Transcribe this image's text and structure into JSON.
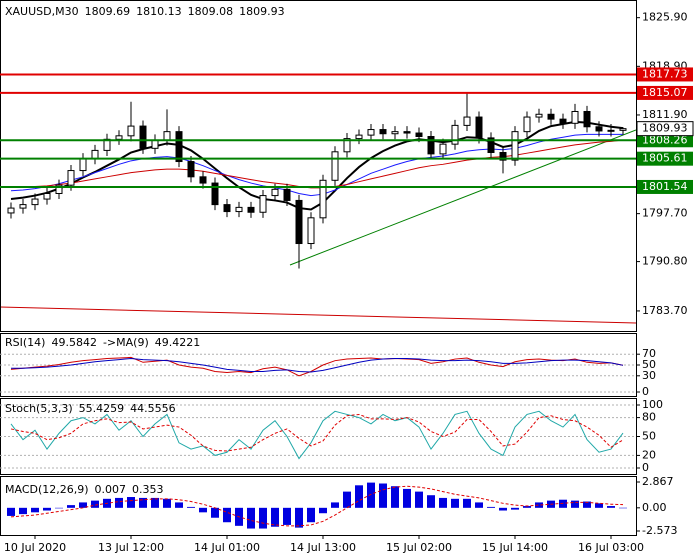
{
  "chart_data": [
    {
      "type": "candlestick",
      "title": "XAUUSD,M30",
      "categories": [
        null,
        null,
        "10 Jul 2020",
        null,
        null,
        null,
        null,
        null,
        null,
        null,
        "13 Jul 12:00",
        null,
        null,
        null,
        null,
        null,
        null,
        null,
        "14 Jul 01:00",
        null,
        null,
        null,
        null,
        null,
        null,
        null,
        "14 Jul 13:00",
        null,
        null,
        null,
        null,
        null,
        null,
        null,
        "15 Jul 02:00",
        null,
        null,
        null,
        null,
        null,
        null,
        null,
        "15 Jul 14:00",
        null,
        null,
        null,
        null,
        null,
        null,
        null,
        "16 Jul 03:00",
        null
      ],
      "ohlc": [
        [
          1797.8,
          1799.3,
          1797.0,
          1798.5
        ],
        [
          1798.5,
          1799.8,
          1797.7,
          1799.0
        ],
        [
          1799.0,
          1800.6,
          1798.2,
          1799.8
        ],
        [
          1799.8,
          1801.4,
          1799.0,
          1800.6
        ],
        [
          1800.6,
          1802.6,
          1799.8,
          1801.8
        ],
        [
          1801.8,
          1804.7,
          1801.0,
          1803.9
        ],
        [
          1803.9,
          1806.4,
          1803.1,
          1805.6
        ],
        [
          1805.6,
          1807.6,
          1804.8,
          1806.8
        ],
        [
          1806.8,
          1809.2,
          1806.0,
          1808.4
        ],
        [
          1808.4,
          1809.7,
          1807.6,
          1808.9
        ],
        [
          1808.9,
          1813.8,
          1808.1,
          1810.3
        ],
        [
          1810.3,
          1811.1,
          1806.3,
          1807.1
        ],
        [
          1807.1,
          1809.1,
          1806.3,
          1808.3
        ],
        [
          1808.3,
          1812.7,
          1807.5,
          1809.5
        ],
        [
          1809.5,
          1810.3,
          1804.4,
          1805.2
        ],
        [
          1805.2,
          1806.0,
          1802.2,
          1803.0
        ],
        [
          1803.0,
          1803.8,
          1801.3,
          1802.1
        ],
        [
          1802.1,
          1802.9,
          1798.2,
          1799.0
        ],
        [
          1799.0,
          1799.8,
          1797.2,
          1798.0
        ],
        [
          1798.0,
          1799.4,
          1797.2,
          1798.6
        ],
        [
          1798.6,
          1799.4,
          1797.1,
          1797.9
        ],
        [
          1797.9,
          1801.1,
          1797.1,
          1800.3
        ],
        [
          1800.3,
          1802.0,
          1799.5,
          1801.2
        ],
        [
          1801.2,
          1802.0,
          1798.8,
          1799.6
        ],
        [
          1799.6,
          1800.4,
          1789.8,
          1793.4
        ],
        [
          1793.4,
          1797.9,
          1792.6,
          1797.1
        ],
        [
          1797.1,
          1803.3,
          1796.3,
          1802.5
        ],
        [
          1802.5,
          1807.4,
          1801.7,
          1806.6
        ],
        [
          1806.6,
          1809.3,
          1805.8,
          1808.5
        ],
        [
          1808.5,
          1809.8,
          1807.7,
          1809.0
        ],
        [
          1809.0,
          1810.6,
          1808.2,
          1809.8
        ],
        [
          1809.8,
          1810.6,
          1808.4,
          1809.2
        ],
        [
          1809.2,
          1810.3,
          1808.4,
          1809.5
        ],
        [
          1809.5,
          1810.3,
          1808.5,
          1809.3
        ],
        [
          1809.3,
          1810.1,
          1808.0,
          1808.8
        ],
        [
          1808.8,
          1809.6,
          1805.5,
          1806.3
        ],
        [
          1806.3,
          1808.5,
          1805.5,
          1807.7
        ],
        [
          1807.7,
          1811.2,
          1806.9,
          1810.4
        ],
        [
          1810.4,
          1815.0,
          1809.6,
          1811.6
        ],
        [
          1811.6,
          1812.4,
          1807.8,
          1808.6
        ],
        [
          1808.6,
          1809.4,
          1805.7,
          1806.5
        ],
        [
          1806.5,
          1807.3,
          1803.5,
          1805.4
        ],
        [
          1805.4,
          1810.3,
          1804.6,
          1809.5
        ],
        [
          1809.5,
          1812.4,
          1808.7,
          1811.6
        ],
        [
          1811.6,
          1812.8,
          1810.8,
          1812.0
        ],
        [
          1812.0,
          1812.8,
          1810.5,
          1811.3
        ],
        [
          1811.3,
          1812.1,
          1809.9,
          1810.7
        ],
        [
          1810.7,
          1813.5,
          1809.9,
          1812.4
        ],
        [
          1812.4,
          1813.2,
          1809.4,
          1810.2
        ],
        [
          1810.2,
          1811.0,
          1808.8,
          1809.6
        ],
        [
          1809.6,
          1810.6,
          1808.8,
          1809.69
        ],
        [
          1809.69,
          1810.13,
          1809.08,
          1809.93
        ]
      ],
      "lines": [
        {
          "color": "#000000",
          "values": [
            1799.8,
            1800.0,
            1800.3,
            1800.7,
            1801.3,
            1802.0,
            1802.9,
            1803.7,
            1804.6,
            1805.5,
            1806.5,
            1807.0,
            1807.4,
            1807.8,
            1807.6,
            1806.8,
            1805.6,
            1804.2,
            1802.8,
            1801.5,
            1800.4,
            1799.8,
            1799.6,
            1799.3,
            1798.5,
            1798.3,
            1799.3,
            1801.0,
            1802.8,
            1804.4,
            1805.7,
            1806.7,
            1807.5,
            1808.1,
            1808.4,
            1808.2,
            1808.0,
            1808.2,
            1808.7,
            1808.6,
            1808.0,
            1807.3,
            1807.6,
            1808.5,
            1809.6,
            1810.3,
            1810.6,
            1810.9,
            1810.8,
            1810.5,
            1810.2,
            1810.0
          ]
        },
        {
          "color": "#1a1aff",
          "values": [
            1801.0,
            1801.1,
            1801.3,
            1801.6,
            1802.0,
            1802.5,
            1803.0,
            1803.6,
            1804.2,
            1804.8,
            1805.3,
            1805.6,
            1805.8,
            1805.9,
            1805.7,
            1805.2,
            1804.6,
            1803.9,
            1803.2,
            1802.6,
            1802.1,
            1801.7,
            1801.4,
            1801.1,
            1800.6,
            1800.3,
            1800.5,
            1801.1,
            1801.9,
            1802.7,
            1803.5,
            1804.1,
            1804.7,
            1805.2,
            1805.6,
            1805.8,
            1806.0,
            1806.3,
            1806.7,
            1806.9,
            1807.0,
            1806.9,
            1807.1,
            1807.5,
            1808.0,
            1808.4,
            1808.7,
            1809.0,
            1809.1,
            1809.1,
            1809.1,
            1809.1
          ]
        },
        {
          "color": "#cc0000",
          "values": [
            1801.5,
            1801.5,
            1801.6,
            1801.7,
            1801.9,
            1802.1,
            1802.4,
            1802.7,
            1803.0,
            1803.3,
            1803.6,
            1803.8,
            1804.0,
            1804.1,
            1804.1,
            1804.0,
            1803.8,
            1803.5,
            1803.2,
            1802.9,
            1802.6,
            1802.3,
            1802.1,
            1801.9,
            1801.6,
            1801.4,
            1801.4,
            1801.6,
            1801.9,
            1802.3,
            1802.7,
            1803.1,
            1803.5,
            1803.9,
            1804.3,
            1804.6,
            1804.8,
            1805.1,
            1805.4,
            1805.6,
            1805.8,
            1805.9,
            1806.1,
            1806.4,
            1806.7,
            1807.0,
            1807.3,
            1807.6,
            1807.8,
            1808.0,
            1808.1,
            1808.3
          ]
        }
      ],
      "levels": [
        {
          "value": 1817.73,
          "color": "#e00000"
        },
        {
          "value": 1815.07,
          "color": "#e00000"
        },
        {
          "value": 1808.26,
          "color": "#008000"
        },
        {
          "value": 1805.61,
          "color": "#008000"
        },
        {
          "value": 1801.54,
          "color": "#008000"
        }
      ],
      "ylim": [
        1781.1,
        1828.3
      ],
      "yticks": [
        {
          "value": 1825.9,
          "label": "1825.90"
        },
        {
          "value": 1818.9,
          "label": "1818.90"
        },
        {
          "value": 1811.9,
          "label": "1811.90"
        },
        {
          "value": 1797.7,
          "label": "1797.70"
        },
        {
          "value": 1790.8,
          "label": "1790.80"
        },
        {
          "value": 1783.7,
          "label": "1783.70"
        }
      ],
      "grid": false
    },
    {
      "type": "line",
      "title": "RSI(14)",
      "series": [
        {
          "color": "#d00000",
          "values": [
            42,
            44,
            46,
            48,
            51,
            55,
            58,
            60,
            62,
            63,
            64,
            55,
            57,
            59,
            50,
            46,
            44,
            38,
            36,
            38,
            36,
            43,
            46,
            41,
            30,
            38,
            50,
            58,
            61,
            62,
            63,
            61,
            62,
            61,
            60,
            53,
            56,
            61,
            63,
            55,
            50,
            47,
            56,
            60,
            61,
            59,
            58,
            61,
            55,
            53,
            54,
            49.5842
          ]
        },
        {
          "name": "->MA(9)",
          "color": "#0000c0",
          "values": [
            44,
            44,
            45,
            46,
            48,
            50,
            53,
            56,
            58,
            60,
            62,
            60,
            59,
            58,
            56,
            53,
            50,
            46,
            42,
            40,
            38,
            38,
            40,
            41,
            38,
            37,
            40,
            45,
            50,
            55,
            59,
            61,
            62,
            62,
            61,
            59,
            58,
            58,
            59,
            58,
            56,
            53,
            53,
            54,
            56,
            58,
            59,
            59,
            58,
            56,
            54,
            49.4221
          ]
        }
      ],
      "ylim": [
        0,
        100
      ],
      "yticks": [
        70,
        50,
        30,
        0
      ],
      "grid": true
    },
    {
      "type": "line",
      "title": "Stoch(5,3,3)",
      "series": [
        {
          "color": "#20a8a8",
          "values": [
            70,
            45,
            60,
            30,
            55,
            75,
            80,
            70,
            85,
            60,
            75,
            50,
            70,
            85,
            40,
            30,
            35,
            20,
            25,
            45,
            30,
            60,
            75,
            50,
            15,
            40,
            75,
            90,
            85,
            80,
            70,
            85,
            75,
            80,
            65,
            30,
            55,
            85,
            90,
            55,
            30,
            20,
            65,
            85,
            90,
            75,
            65,
            85,
            45,
            25,
            30,
            55.4259
          ]
        },
        {
          "color": "#e00000",
          "dash": true,
          "values": [
            62,
            58,
            55,
            45,
            48,
            55,
            70,
            75,
            78,
            72,
            73,
            62,
            65,
            68,
            65,
            52,
            35,
            28,
            27,
            30,
            33,
            45,
            55,
            62,
            47,
            35,
            43,
            68,
            83,
            85,
            78,
            78,
            77,
            80,
            73,
            58,
            50,
            57,
            77,
            77,
            58,
            35,
            38,
            57,
            80,
            83,
            77,
            75,
            65,
            52,
            33,
            44.5556
          ]
        }
      ],
      "ylim": [
        0,
        100
      ],
      "yticks": [
        100,
        80,
        50,
        20,
        0
      ],
      "grid": true
    },
    {
      "type": "macd",
      "title": "MACD(12,26,9)",
      "series": [
        {
          "kind": "bar",
          "color": "#0000e0",
          "values": [
            -0.9,
            -0.7,
            -0.5,
            -0.3,
            0.0,
            0.3,
            0.6,
            0.8,
            1.0,
            1.1,
            1.2,
            1.1,
            1.1,
            1.0,
            0.6,
            0.1,
            -0.5,
            -1.1,
            -1.6,
            -2.0,
            -2.3,
            -2.3,
            -2.1,
            -1.9,
            -2.2,
            -1.6,
            -0.6,
            0.6,
            1.8,
            2.5,
            2.8,
            2.7,
            2.4,
            2.1,
            1.8,
            1.4,
            1.1,
            1.0,
            1.0,
            0.6,
            0.1,
            -0.3,
            -0.2,
            0.2,
            0.6,
            0.8,
            0.9,
            0.8,
            0.7,
            0.5,
            0.2,
            0.007
          ]
        },
        {
          "kind": "line",
          "color": "#e00000",
          "dash": true,
          "values": [
            -1.0,
            -0.9,
            -0.8,
            -0.6,
            -0.4,
            -0.2,
            0.0,
            0.3,
            0.5,
            0.7,
            0.8,
            0.9,
            1.0,
            1.0,
            0.9,
            0.7,
            0.4,
            0.0,
            -0.5,
            -1.0,
            -1.4,
            -1.7,
            -1.9,
            -2.0,
            -2.0,
            -1.9,
            -1.5,
            -0.8,
            0.0,
            0.8,
            1.5,
            2.0,
            2.3,
            2.4,
            2.3,
            2.1,
            1.8,
            1.5,
            1.3,
            1.1,
            0.8,
            0.5,
            0.3,
            0.2,
            0.3,
            0.4,
            0.5,
            0.6,
            0.6,
            0.5,
            0.4,
            0.353
          ]
        }
      ],
      "ylim": [
        -2.573,
        2.867
      ],
      "yticks": [
        2.867,
        {
          "value": 0,
          "label": "0.00"
        },
        -2.573
      ],
      "grid": false
    }
  ]
}
